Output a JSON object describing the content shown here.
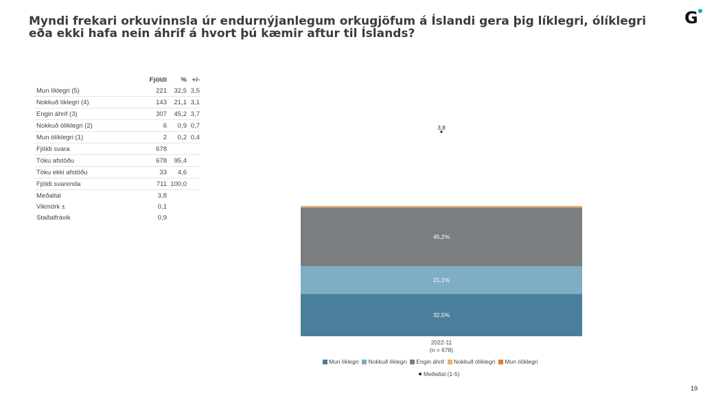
{
  "title": "Myndi frekari orkuvinnsla úr endurnýjanlegum orkugjöfum á Íslandi gera þig líklegri, ólíklegri eða ekki hafa nein áhrif á hvort þú kæmir aftur til Íslands?",
  "logo_text": "G",
  "page_number": "19",
  "table": {
    "headers": {
      "n": "Fjöldi",
      "pct": "%",
      "pm": "+/-"
    },
    "rows": [
      {
        "label": "Mun líklegri (5)",
        "n": "221",
        "pct": "32,5",
        "pm": "3,5"
      },
      {
        "label": "Nokkuð líklegri (4)",
        "n": "143",
        "pct": "21,1",
        "pm": "3,1"
      },
      {
        "label": "Engin áhrif (3)",
        "n": "307",
        "pct": "45,2",
        "pm": "3,7"
      },
      {
        "label": "Nokkuð ólíklegri (2)",
        "n": "6",
        "pct": "0,9",
        "pm": "0,7"
      },
      {
        "label": "Mun ólíklegri (1)",
        "n": "2",
        "pct": "0,2",
        "pm": "0,4"
      },
      {
        "label": "Fjöldi svara",
        "n": "678",
        "pct": "",
        "pm": ""
      },
      {
        "label": "Tóku afstöðu",
        "n": "678",
        "pct": "95,4",
        "pm": ""
      },
      {
        "label": "Tóku ekki afstöðu",
        "n": "33",
        "pct": "4,6",
        "pm": ""
      },
      {
        "label": "Fjöldi svarenda",
        "n": "711",
        "pct": "100,0",
        "pm": ""
      },
      {
        "label": "Meðaltal",
        "n": "3,8",
        "pct": "",
        "pm": ""
      },
      {
        "label": "Vikmörk ±",
        "n": "0,1",
        "pct": "",
        "pm": ""
      },
      {
        "label": "Staðalfrávik",
        "n": "0,9",
        "pct": "",
        "pm": ""
      }
    ]
  },
  "chart_data": {
    "type": "bar",
    "stacked": true,
    "categories": [
      "2022-11"
    ],
    "category_sublabels": [
      "(n = 678)"
    ],
    "series": [
      {
        "name": "Mun líklegri",
        "values": [
          32.5
        ],
        "label": "32,5%",
        "color": "#4a7f9b"
      },
      {
        "name": "Nokkuð líklegri",
        "values": [
          21.1
        ],
        "label": "21,1%",
        "color": "#7fadc6"
      },
      {
        "name": "Engin áhrif",
        "values": [
          45.2
        ],
        "label": "45,2%",
        "color": "#7b7e80"
      },
      {
        "name": "Nokkuð ólíklegri",
        "values": [
          0.9
        ],
        "label": "",
        "color": "#e8b270"
      },
      {
        "name": "Mun ólíklegri",
        "values": [
          0.2
        ],
        "label": "",
        "color": "#e07b2a"
      }
    ],
    "mean": {
      "name": "Meðaltal (1-5)",
      "value": 3.8,
      "label": "3,8",
      "scale": [
        1,
        5
      ]
    },
    "ylim": [
      0,
      100
    ],
    "grid": false,
    "legend_position": "bottom"
  }
}
